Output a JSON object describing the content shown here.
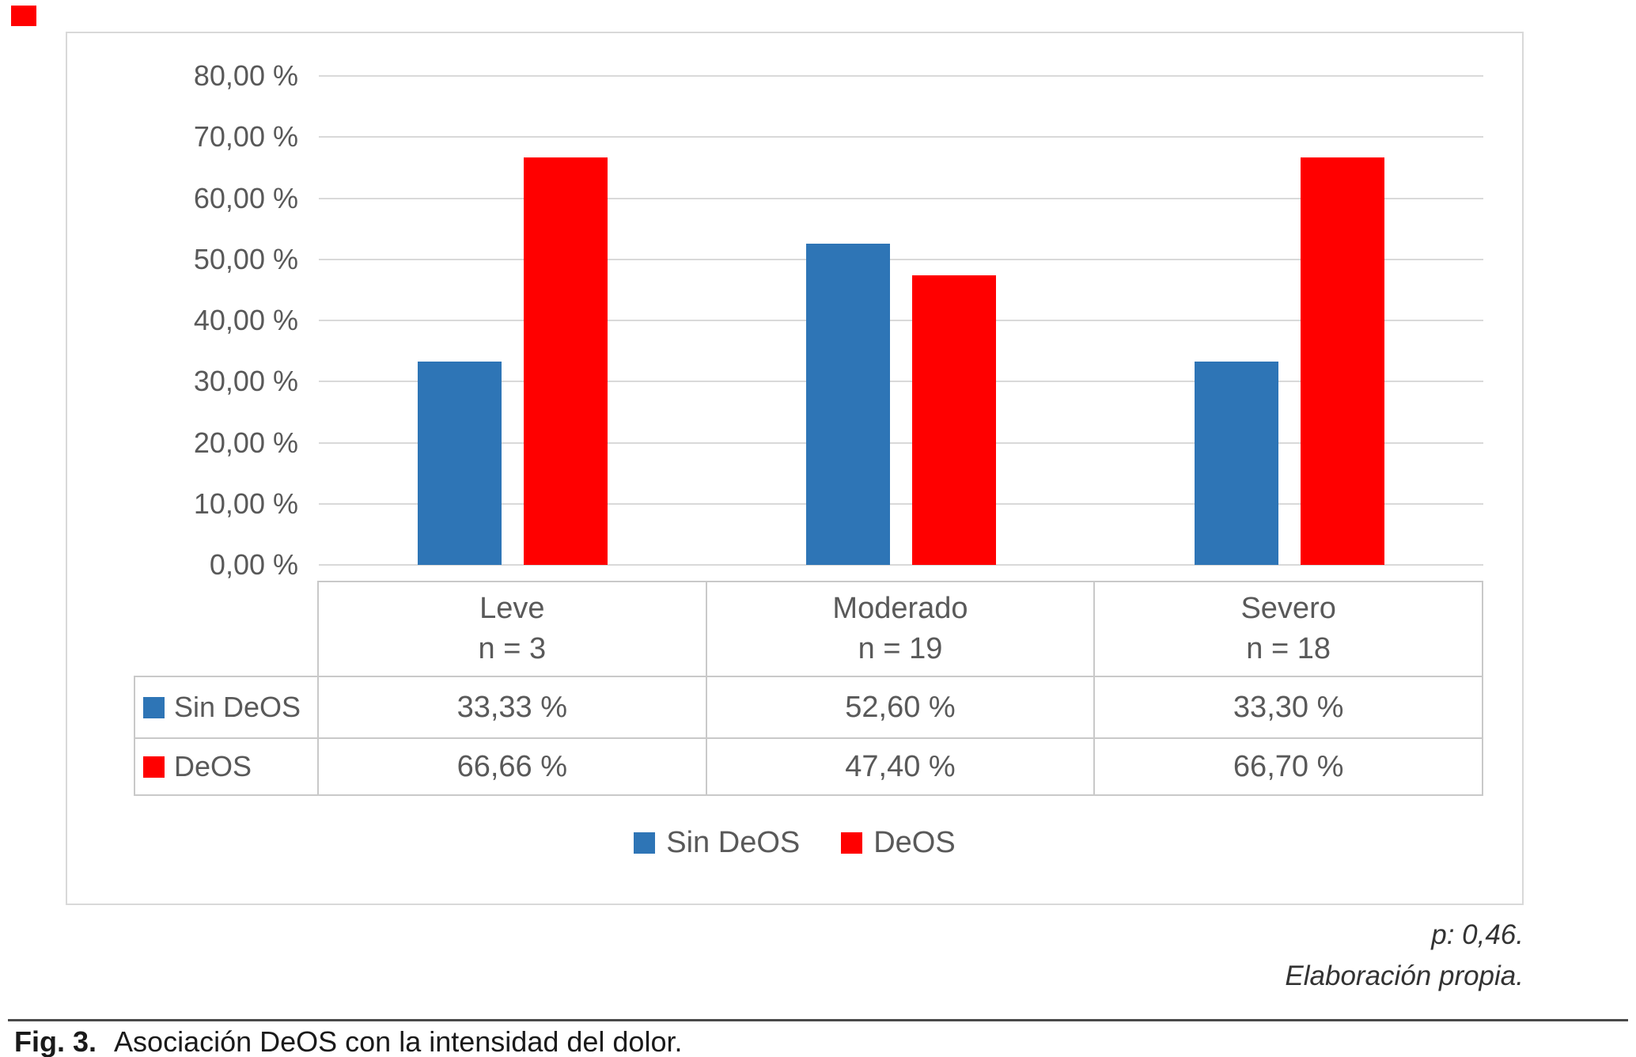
{
  "page": {
    "corner_marker_color": "#FF0000"
  },
  "chart_data": {
    "type": "bar",
    "title": "Asociación DeOS con la intensidad del dolor",
    "categories": [
      {
        "label": "Leve",
        "n": "n = 3"
      },
      {
        "label": "Moderado",
        "n": "n = 19"
      },
      {
        "label": "Severo",
        "n": "n = 18"
      }
    ],
    "series": [
      {
        "name": "Sin DeOS",
        "color": "#2E75B6",
        "values": [
          33.33,
          52.6,
          33.3
        ],
        "formatted": [
          "33,33 %",
          "52,60 %",
          "33,30 %"
        ]
      },
      {
        "name": "DeOS",
        "color": "#FF0000",
        "values": [
          66.66,
          47.4,
          66.7
        ],
        "formatted": [
          "66,66 %",
          "47,40 %",
          "66,70 %"
        ]
      }
    ],
    "ylim": [
      0,
      80
    ],
    "y_ticks": [
      {
        "value": 0,
        "label": "0,00 %"
      },
      {
        "value": 10,
        "label": "10,00 %"
      },
      {
        "value": 20,
        "label": "20,00 %"
      },
      {
        "value": 30,
        "label": "30,00 %"
      },
      {
        "value": 40,
        "label": "40,00 %"
      },
      {
        "value": 50,
        "label": "50,00 %"
      },
      {
        "value": 60,
        "label": "60,00 %"
      },
      {
        "value": 70,
        "label": "70,00 %"
      },
      {
        "value": 80,
        "label": "80,00 %"
      }
    ],
    "grid": true,
    "legend_position": "bottom"
  },
  "annotations": {
    "p_value": "p: 0,46.",
    "source": "Elaboración propia."
  },
  "caption": {
    "fig_label": "Fig. 3.",
    "text": "Asociación DeOS con la intensidad del dolor."
  }
}
